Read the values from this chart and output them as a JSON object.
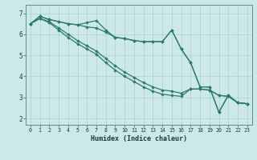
{
  "xlabel": "Humidex (Indice chaleur)",
  "background_color": "#cce8e8",
  "grid_color": "#aad0d0",
  "line_color": "#2e7b6e",
  "xlim": [
    -0.5,
    23.5
  ],
  "ylim": [
    1.7,
    7.4
  ],
  "yticks": [
    2,
    3,
    4,
    5,
    6,
    7
  ],
  "xticks": [
    0,
    1,
    2,
    3,
    4,
    5,
    6,
    7,
    8,
    9,
    10,
    11,
    12,
    13,
    14,
    15,
    16,
    17,
    18,
    19,
    20,
    21,
    22,
    23
  ],
  "series": [
    [
      6.5,
      6.85,
      6.7,
      6.6,
      6.5,
      6.45,
      6.55,
      6.65,
      6.2,
      5.85,
      5.8,
      5.7,
      5.65,
      5.65,
      5.65,
      6.2,
      5.3,
      4.65,
      3.5,
      3.5,
      2.3,
      3.1,
      2.75,
      2.7
    ],
    [
      6.5,
      6.85,
      6.7,
      6.6,
      6.5,
      6.45,
      6.35,
      6.3,
      6.1,
      5.85,
      5.8,
      5.7,
      5.65,
      5.65,
      5.65,
      6.2,
      5.3,
      4.65,
      3.5,
      3.5,
      2.3,
      3.1,
      2.75,
      2.7
    ],
    [
      6.5,
      6.75,
      6.6,
      6.3,
      6.0,
      5.7,
      5.45,
      5.2,
      4.85,
      4.5,
      4.2,
      3.95,
      3.7,
      3.5,
      3.35,
      3.3,
      3.2,
      3.4,
      3.4,
      3.35,
      3.1,
      3.05,
      2.75,
      2.7
    ],
    [
      6.5,
      6.75,
      6.55,
      6.2,
      5.85,
      5.55,
      5.3,
      5.05,
      4.65,
      4.3,
      4.0,
      3.75,
      3.5,
      3.3,
      3.15,
      3.1,
      3.05,
      3.4,
      3.4,
      3.35,
      3.1,
      3.05,
      2.75,
      2.7
    ]
  ]
}
